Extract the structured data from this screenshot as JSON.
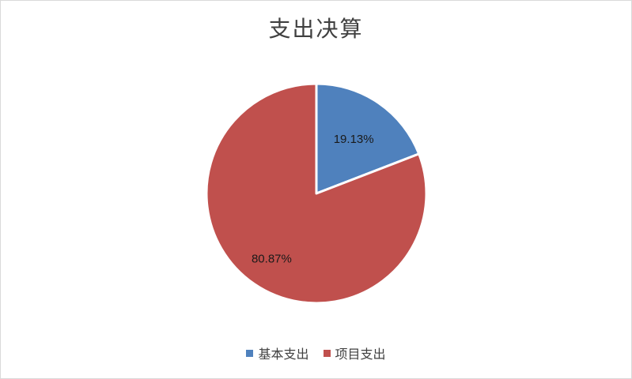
{
  "chart_data": {
    "type": "pie",
    "title": "支出决算",
    "legend_position": "bottom",
    "slices": [
      {
        "name": "基本支出",
        "value": 19.13,
        "label": "19.13%",
        "color": "#4f81bd"
      },
      {
        "name": "项目支出",
        "value": 80.87,
        "label": "80.87%",
        "color": "#c0504d"
      }
    ]
  }
}
